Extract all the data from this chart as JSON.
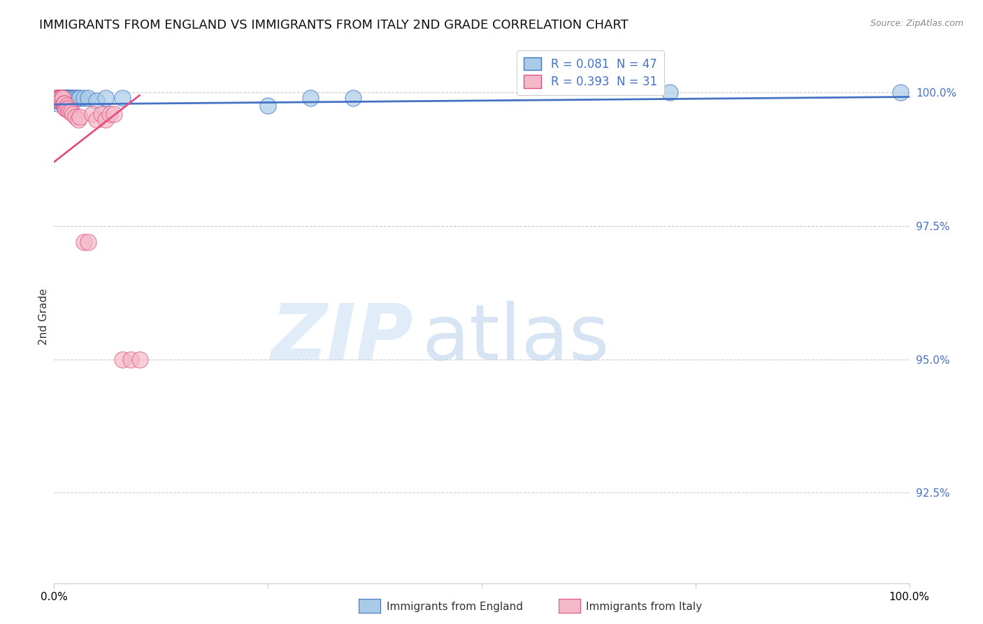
{
  "title": "IMMIGRANTS FROM ENGLAND VS IMMIGRANTS FROM ITALY 2ND GRADE CORRELATION CHART",
  "source": "Source: ZipAtlas.com",
  "ylabel": "2nd Grade",
  "ytick_labels": [
    "100.0%",
    "97.5%",
    "95.0%",
    "92.5%"
  ],
  "ytick_values": [
    1.0,
    0.975,
    0.95,
    0.925
  ],
  "xlim": [
    0.0,
    1.0
  ],
  "ylim": [
    0.908,
    1.008
  ],
  "legend_england": "R = 0.081  N = 47",
  "legend_italy": "R = 0.393  N = 31",
  "england_color": "#a8cce8",
  "italy_color": "#f4b8c8",
  "trendline_england_color": "#4472c4",
  "trendline_italy_color": "#e05080",
  "background_color": "#ffffff",
  "eng_x": [
    0.003,
    0.004,
    0.004,
    0.005,
    0.005,
    0.005,
    0.006,
    0.006,
    0.006,
    0.007,
    0.007,
    0.007,
    0.008,
    0.008,
    0.009,
    0.009,
    0.01,
    0.01,
    0.011,
    0.011,
    0.012,
    0.012,
    0.013,
    0.013,
    0.014,
    0.014,
    0.015,
    0.016,
    0.017,
    0.018,
    0.019,
    0.02,
    0.022,
    0.024,
    0.026,
    0.028,
    0.03,
    0.035,
    0.04,
    0.05,
    0.06,
    0.08,
    0.25,
    0.3,
    0.35,
    0.72,
    0.99
  ],
  "eng_y": [
    0.999,
    0.998,
    0.9985,
    0.999,
    0.999,
    0.9985,
    0.999,
    0.999,
    0.999,
    0.999,
    0.999,
    0.9985,
    0.999,
    0.999,
    0.999,
    0.999,
    0.999,
    0.9985,
    0.999,
    0.999,
    0.999,
    0.999,
    0.999,
    0.999,
    0.999,
    0.999,
    0.999,
    0.999,
    0.999,
    0.999,
    0.999,
    0.999,
    0.999,
    0.999,
    0.999,
    0.999,
    0.999,
    0.999,
    0.999,
    0.9985,
    0.999,
    0.999,
    0.9975,
    0.999,
    0.999,
    1.0,
    1.0
  ],
  "ita_x": [
    0.003,
    0.004,
    0.005,
    0.006,
    0.007,
    0.008,
    0.009,
    0.01,
    0.011,
    0.012,
    0.013,
    0.014,
    0.015,
    0.016,
    0.018,
    0.02,
    0.022,
    0.025,
    0.028,
    0.03,
    0.035,
    0.04,
    0.045,
    0.05,
    0.055,
    0.06,
    0.065,
    0.07,
    0.08,
    0.09,
    0.1
  ],
  "ita_y": [
    0.999,
    0.999,
    0.999,
    0.999,
    0.999,
    0.9985,
    0.999,
    0.999,
    0.998,
    0.998,
    0.997,
    0.997,
    0.9975,
    0.997,
    0.9965,
    0.9965,
    0.996,
    0.9955,
    0.995,
    0.9955,
    0.972,
    0.972,
    0.996,
    0.995,
    0.996,
    0.995,
    0.996,
    0.996,
    0.95,
    0.95,
    0.95
  ],
  "eng_trend_x": [
    0.0,
    1.0
  ],
  "eng_trend_y": [
    0.9978,
    0.9992
  ],
  "ita_trend_x": [
    0.0,
    0.1
  ],
  "ita_trend_y": [
    0.987,
    0.9995
  ]
}
